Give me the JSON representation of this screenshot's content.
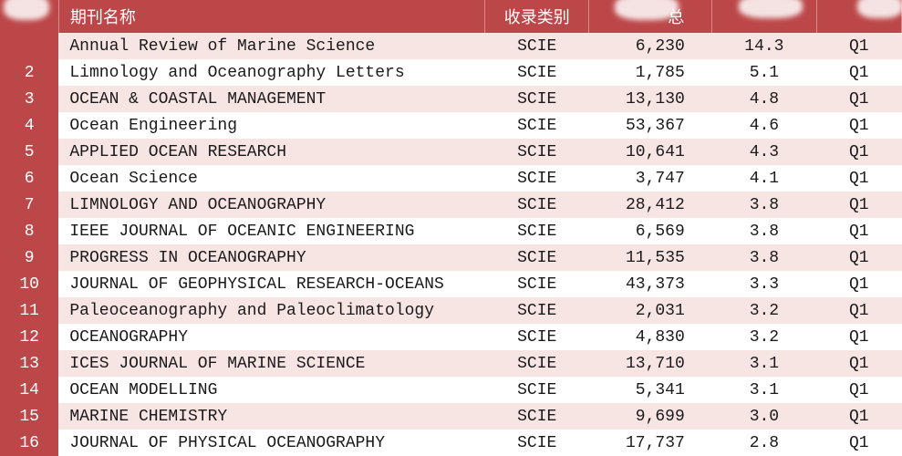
{
  "table": {
    "header_bg": "#bc4749",
    "header_fg": "#ffffff",
    "row_odd_bg": "#f7e5e3",
    "row_even_bg": "#ffffff",
    "rank_bg": "#bc4749",
    "text_color": "#1a1a1a",
    "font_family": "Courier New",
    "columns": [
      {
        "key": "rank",
        "label": "",
        "class": "col-rank"
      },
      {
        "key": "name",
        "label": "期刊名称",
        "class": "col-name"
      },
      {
        "key": "category",
        "label": "收录类别",
        "class": "col-category"
      },
      {
        "key": "count",
        "label": "总",
        "class": "col-count"
      },
      {
        "key": "impact",
        "label": "",
        "class": "col-if"
      },
      {
        "key": "quartile",
        "label": "",
        "class": "col-q"
      }
    ],
    "rows": [
      {
        "rank": "",
        "name": "Annual Review of Marine Science",
        "category": "SCIE",
        "count": "6,230",
        "impact": "14.3",
        "quartile": "Q1"
      },
      {
        "rank": "2",
        "name": "Limnology and Oceanography Letters",
        "category": "SCIE",
        "count": "1,785",
        "impact": "5.1",
        "quartile": "Q1"
      },
      {
        "rank": "3",
        "name": "OCEAN & COASTAL MANAGEMENT",
        "category": "SCIE",
        "count": "13,130",
        "impact": "4.8",
        "quartile": "Q1"
      },
      {
        "rank": "4",
        "name": "Ocean Engineering",
        "category": "SCIE",
        "count": "53,367",
        "impact": "4.6",
        "quartile": "Q1"
      },
      {
        "rank": "5",
        "name": "APPLIED OCEAN RESEARCH",
        "category": "SCIE",
        "count": "10,641",
        "impact": "4.3",
        "quartile": "Q1"
      },
      {
        "rank": "6",
        "name": "Ocean Science",
        "category": "SCIE",
        "count": "3,747",
        "impact": "4.1",
        "quartile": "Q1"
      },
      {
        "rank": "7",
        "name": "LIMNOLOGY AND OCEANOGRAPHY",
        "category": "SCIE",
        "count": "28,412",
        "impact": "3.8",
        "quartile": "Q1"
      },
      {
        "rank": "8",
        "name": "IEEE JOURNAL OF OCEANIC ENGINEERING",
        "category": "SCIE",
        "count": "6,569",
        "impact": "3.8",
        "quartile": "Q1"
      },
      {
        "rank": "9",
        "name": "PROGRESS IN OCEANOGRAPHY",
        "category": "SCIE",
        "count": "11,535",
        "impact": "3.8",
        "quartile": "Q1"
      },
      {
        "rank": "10",
        "name": "JOURNAL OF GEOPHYSICAL RESEARCH-OCEANS",
        "category": "SCIE",
        "count": "43,373",
        "impact": "3.3",
        "quartile": "Q1"
      },
      {
        "rank": "11",
        "name": "Paleoceanography and Paleoclimatology",
        "category": "SCIE",
        "count": "2,031",
        "impact": "3.2",
        "quartile": "Q1"
      },
      {
        "rank": "12",
        "name": "OCEANOGRAPHY",
        "category": "SCIE",
        "count": "4,830",
        "impact": "3.2",
        "quartile": "Q1"
      },
      {
        "rank": "13",
        "name": "ICES JOURNAL OF MARINE SCIENCE",
        "category": "SCIE",
        "count": "13,710",
        "impact": "3.1",
        "quartile": "Q1"
      },
      {
        "rank": "14",
        "name": "OCEAN MODELLING",
        "category": "SCIE",
        "count": "5,341",
        "impact": "3.1",
        "quartile": "Q1"
      },
      {
        "rank": "15",
        "name": "MARINE CHEMISTRY",
        "category": "SCIE",
        "count": "9,699",
        "impact": "3.0",
        "quartile": "Q1"
      },
      {
        "rank": "16",
        "name": "JOURNAL OF PHYSICAL OCEANOGRAPHY",
        "category": "SCIE",
        "count": "17,737",
        "impact": "2.8",
        "quartile": "Q1"
      }
    ]
  }
}
